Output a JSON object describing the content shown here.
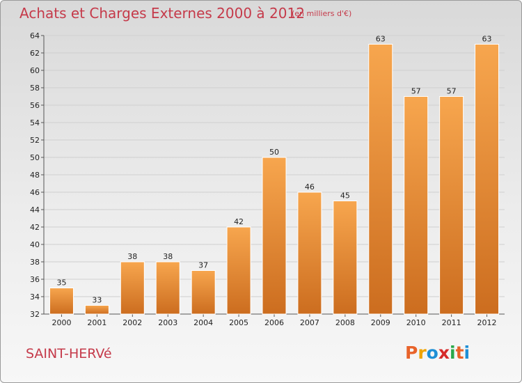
{
  "header": {
    "title": "Achats et Charges Externes 2000 à 2012",
    "subtitle": "(en milliers d'€)"
  },
  "footer": {
    "commune": "SAINT-HERVé",
    "logo": {
      "letters": [
        "P",
        "r",
        "o",
        "x",
        "i",
        "t",
        "i"
      ],
      "colors": [
        "#e8632a",
        "#f0a400",
        "#1e8fd6",
        "#d62a2a",
        "#2aa84a",
        "#e8632a",
        "#1e8fd6"
      ]
    }
  },
  "chart_data": {
    "type": "bar",
    "categories": [
      "2000",
      "2001",
      "2002",
      "2003",
      "2004",
      "2005",
      "2006",
      "2007",
      "2008",
      "2009",
      "2010",
      "2011",
      "2012"
    ],
    "values": [
      35,
      33,
      38,
      38,
      37,
      42,
      50,
      46,
      45,
      63,
      57,
      57,
      63
    ],
    "data_labels": [
      "35",
      "33",
      "38",
      "38",
      "37",
      "42",
      "50",
      "46",
      "45",
      "63",
      "57",
      "57",
      "63"
    ],
    "title": "Achats et Charges Externes 2000 à 2012",
    "ylim": [
      32,
      64
    ],
    "yticks": [
      "32",
      "34",
      "36",
      "38",
      "40",
      "42",
      "44",
      "46",
      "48",
      "50",
      "52",
      "54",
      "56",
      "58",
      "60",
      "62",
      "64"
    ],
    "grid": true,
    "legend": "none",
    "colors": {
      "bar_top": "#f7a64e",
      "bar_bottom": "#cc6d1f",
      "grid": "#cfcfcf"
    }
  }
}
